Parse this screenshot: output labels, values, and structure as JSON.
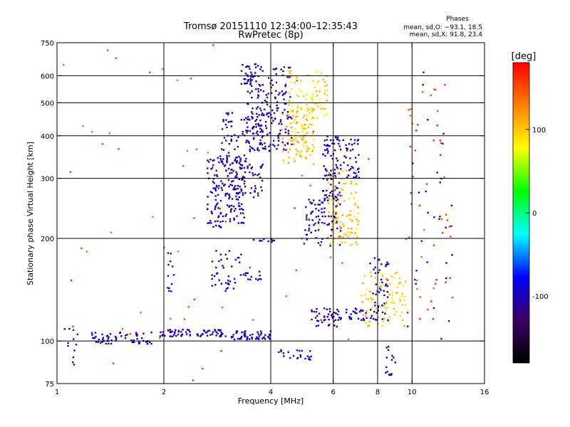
{
  "chart_data": {
    "type": "scatter",
    "title": "Tromsø 20151110 12:34:00–12:35:43",
    "subtitle": "RwPretec (8p)",
    "xlabel": "Frequency [MHz]",
    "ylabel": "Stationary phase Virtual Height [km]",
    "x_scale": "log",
    "y_scale": "log",
    "xlim": [
      1,
      16
    ],
    "ylim": [
      75,
      750
    ],
    "x_ticks": [
      1,
      2,
      4,
      6,
      8,
      10,
      16
    ],
    "x_tick_labels": [
      "1",
      "2",
      "4",
      "6",
      "8",
      "10",
      "16"
    ],
    "x_grid": [
      2,
      4,
      6,
      8,
      10
    ],
    "y_ticks": [
      75,
      100,
      200,
      300,
      400,
      500,
      600,
      750
    ],
    "y_tick_labels": [
      "75",
      "100",
      "200",
      "300",
      "400",
      "500",
      "600",
      "750"
    ],
    "y_grid": [
      100,
      200,
      300,
      400,
      500,
      600
    ],
    "grid": true,
    "stats_title": "Phases",
    "stats_lines": [
      "mean, sd,O: −93.1, 18.5",
      "mean, sd,X:  91.8, 23.4"
    ],
    "colorbar": {
      "label": "[deg]",
      "range": [
        -180,
        180
      ],
      "ticks": [
        100,
        0,
        -100
      ],
      "tick_labels": [
        "100",
        "0",
        "-100"
      ],
      "colors": [
        "#000000",
        "#3c0064",
        "#0000ff",
        "#00ffff",
        "#00ff00",
        "#ffff00",
        "#ff8000",
        "#ff0000"
      ]
    },
    "series": [
      {
        "x_range": [
          1.05,
          1.15
        ],
        "y_range": [
          85,
          110
        ],
        "n": 12,
        "phase": -100
      },
      {
        "x_range": [
          1.25,
          1.85
        ],
        "y_range": [
          98,
          106
        ],
        "n": 60,
        "phase": -100
      },
      {
        "x_range": [
          1.95,
          3.0
        ],
        "y_range": [
          103,
          108
        ],
        "n": 70,
        "phase": -100
      },
      {
        "x_range": [
          3.1,
          4.0
        ],
        "y_range": [
          101,
          107
        ],
        "n": 55,
        "phase": -100
      },
      {
        "x_range": [
          2.05,
          2.15
        ],
        "y_range": [
          138,
          195
        ],
        "n": 12,
        "phase": -100
      },
      {
        "x_range": [
          2.65,
          3.4
        ],
        "y_range": [
          215,
          350
        ],
        "n": 170,
        "phase": -100
      },
      {
        "x_range": [
          2.9,
          3.8
        ],
        "y_range": [
          260,
          470
        ],
        "n": 130,
        "phase": -105
      },
      {
        "x_range": [
          3.4,
          4.6
        ],
        "y_range": [
          360,
          650
        ],
        "n": 190,
        "phase": -100
      },
      {
        "x_range": [
          3.3,
          3.7
        ],
        "y_range": [
          560,
          650
        ],
        "n": 30,
        "phase": -100
      },
      {
        "x_range": [
          2.7,
          3.3
        ],
        "y_range": [
          140,
          185
        ],
        "n": 40,
        "phase": -100
      },
      {
        "x_range": [
          3.3,
          3.8
        ],
        "y_range": [
          150,
          160
        ],
        "n": 14,
        "phase": -100
      },
      {
        "x_range": [
          3.5,
          4.2
        ],
        "y_range": [
          195,
          200
        ],
        "n": 10,
        "phase": -100
      },
      {
        "x_range": [
          4.3,
          5.3
        ],
        "y_range": [
          330,
          480
        ],
        "n": 110,
        "phase": 100
      },
      {
        "x_range": [
          4.5,
          5.8
        ],
        "y_range": [
          450,
          620
        ],
        "n": 80,
        "phase": 95
      },
      {
        "x_range": [
          4.9,
          6.3
        ],
        "y_range": [
          190,
          260
        ],
        "n": 80,
        "phase": -100
      },
      {
        "x_range": [
          5.6,
          6.3
        ],
        "y_range": [
          260,
          400
        ],
        "n": 90,
        "phase": -100
      },
      {
        "x_range": [
          5.8,
          7.1
        ],
        "y_range": [
          190,
          320
        ],
        "n": 110,
        "phase": 100
      },
      {
        "x_range": [
          6.4,
          7.1
        ],
        "y_range": [
          300,
          390
        ],
        "n": 40,
        "phase": -95
      },
      {
        "x_range": [
          4.2,
          5.2
        ],
        "y_range": [
          88,
          95
        ],
        "n": 22,
        "phase": -100
      },
      {
        "x_range": [
          5.2,
          6.2
        ],
        "y_range": [
          110,
          125
        ],
        "n": 40,
        "phase": -100
      },
      {
        "x_range": [
          6.2,
          7.5
        ],
        "y_range": [
          115,
          125
        ],
        "n": 30,
        "phase": -90
      },
      {
        "x_range": [
          7.2,
          9.6
        ],
        "y_range": [
          110,
          160
        ],
        "n": 85,
        "phase": 100
      },
      {
        "x_range": [
          7.6,
          8.6
        ],
        "y_range": [
          115,
          175
        ],
        "n": 50,
        "phase": -100
      },
      {
        "x_range": [
          8.4,
          9.0
        ],
        "y_range": [
          78,
          98
        ],
        "n": 15,
        "phase": -100
      },
      {
        "x_range": [
          9.6,
          13.0
        ],
        "y_range": [
          100,
          620
        ],
        "n": 50,
        "phase": 160
      },
      {
        "x_range": [
          9.6,
          13.0
        ],
        "y_range": [
          100,
          620
        ],
        "n": 30,
        "phase": -100
      },
      {
        "x_range": [
          1.0,
          9.0
        ],
        "y_range": [
          75,
          750
        ],
        "n": 60,
        "phase": 150
      }
    ]
  }
}
